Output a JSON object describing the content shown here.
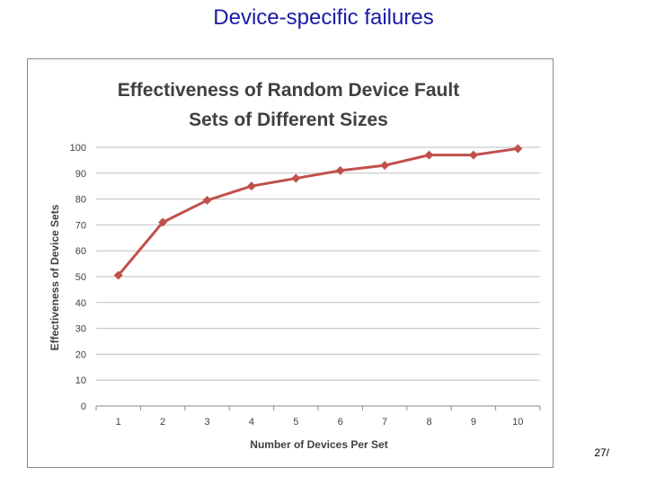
{
  "slide": {
    "title": "Device-specific failures",
    "page_number": "27/"
  },
  "chart_data": {
    "type": "line",
    "title_lines": [
      "Effectiveness of Random Device Fault",
      "Sets of Different Sizes"
    ],
    "xlabel": "Number of Devices Per Set",
    "ylabel": "Effectiveness of Device Sets",
    "x": [
      1,
      2,
      3,
      4,
      5,
      6,
      7,
      8,
      9,
      10
    ],
    "series": [
      {
        "values": [
          50.5,
          71,
          79.5,
          85,
          88,
          91,
          93,
          97,
          97,
          99.5
        ],
        "color": "#c0504d"
      }
    ],
    "ylim": [
      0,
      100
    ],
    "yticks": [
      0,
      10,
      20,
      30,
      40,
      50,
      60,
      70,
      80,
      90,
      100
    ],
    "grid": true,
    "legend": "none",
    "colors": {
      "line": "#c0504d",
      "grid": "#bfbfbf",
      "title": "#1a1aa8"
    }
  }
}
